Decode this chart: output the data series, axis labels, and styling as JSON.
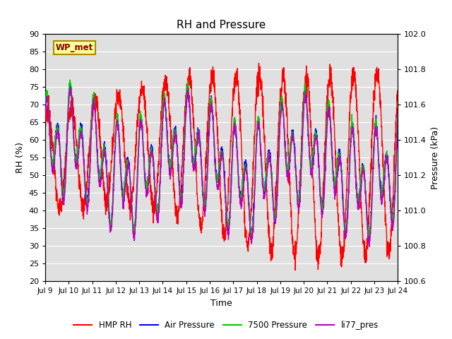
{
  "title": "RH and Pressure",
  "xlabel": "Time",
  "ylabel_left": "RH (%)",
  "ylabel_right": "Pressure (kPa)",
  "ylim_left": [
    20,
    90
  ],
  "ylim_right": [
    100.6,
    102.0
  ],
  "xtick_labels": [
    "Jul 9",
    "Jul 10",
    "Jul 11",
    "Jul 12",
    "Jul 13",
    "Jul 14",
    "Jul 15",
    "Jul 16",
    "Jul 17",
    "Jul 18",
    "Jul 19",
    "Jul 20",
    "Jul 21",
    "Jul 22",
    "Jul 23",
    "Jul 24"
  ],
  "yticks_left": [
    20,
    25,
    30,
    35,
    40,
    45,
    50,
    55,
    60,
    65,
    70,
    75,
    80,
    85,
    90
  ],
  "yticks_right": [
    100.6,
    100.8,
    101.0,
    101.2,
    101.4,
    101.6,
    101.8,
    102.0
  ],
  "legend_labels": [
    "HMP RH",
    "Air Pressure",
    "7500 Pressure",
    "li77_pres"
  ],
  "legend_colors": [
    "#ff0000",
    "#0000ff",
    "#00cc00",
    "#bb00bb"
  ],
  "plot_bg_color": "#e0e0e0",
  "annotation_text": "WP_met",
  "annotation_bg": "#ffff99",
  "annotation_border": "#aa8800",
  "line_width": 1.0
}
